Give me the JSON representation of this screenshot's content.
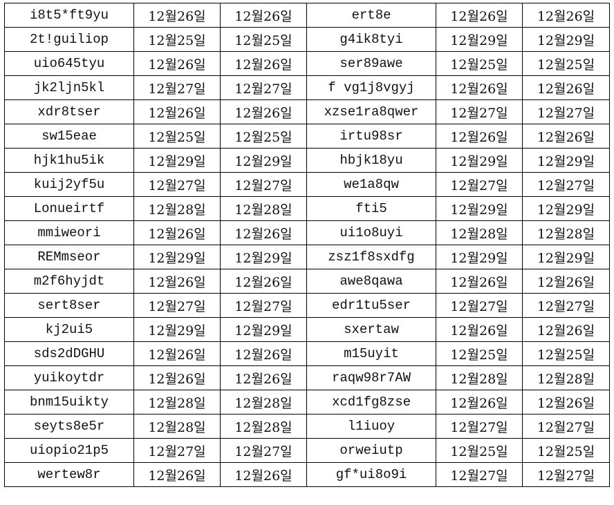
{
  "rows": [
    {
      "a": "i8t5*ft9yu",
      "a1": "12월26일",
      "a2": "12월26일",
      "b": "ert8e",
      "b1": "12월26일",
      "b2": "12월26일"
    },
    {
      "a": "2t!guiliop",
      "a1": "12월25일",
      "a2": "12월25일",
      "b": "g4ik8tyi",
      "b1": "12월29일",
      "b2": "12월29일"
    },
    {
      "a": "uio645tyu",
      "a1": "12월26일",
      "a2": "12월26일",
      "b": "ser89awe",
      "b1": "12월25일",
      "b2": "12월25일"
    },
    {
      "a": "jk2ljn5kl",
      "a1": "12월27일",
      "a2": "12월27일",
      "b": "f vg1j8vgyj",
      "b1": "12월26일",
      "b2": "12월26일"
    },
    {
      "a": "xdr8tser",
      "a1": "12월26일",
      "a2": "12월26일",
      "b": "xzse1ra8qwer",
      "b1": "12월27일",
      "b2": "12월27일"
    },
    {
      "a": "sw15eae",
      "a1": "12월25일",
      "a2": "12월25일",
      "b": "irtu98sr",
      "b1": "12월26일",
      "b2": "12월26일"
    },
    {
      "a": "hjk1hu5ik",
      "a1": "12월29일",
      "a2": "12월29일",
      "b": "hbjk18yu",
      "b1": "12월29일",
      "b2": "12월29일"
    },
    {
      "a": "kuij2yf5u",
      "a1": "12월27일",
      "a2": "12월27일",
      "b": "we1a8qw",
      "b1": "12월27일",
      "b2": "12월27일"
    },
    {
      "a": "Lonueirtf",
      "a1": "12월28일",
      "a2": "12월28일",
      "b": "fti5",
      "b1": "12월29일",
      "b2": "12월29일"
    },
    {
      "a": "mmiweori",
      "a1": "12월26일",
      "a2": "12월26일",
      "b": "ui1o8uyi",
      "b1": "12월28일",
      "b2": "12월28일"
    },
    {
      "a": "REMmseor",
      "a1": "12월29일",
      "a2": "12월29일",
      "b": "zsz1f8sxdfg",
      "b1": "12월29일",
      "b2": "12월29일"
    },
    {
      "a": "m2f6hyjdt",
      "a1": "12월26일",
      "a2": "12월26일",
      "b": "awe8qawa",
      "b1": "12월26일",
      "b2": "12월26일"
    },
    {
      "a": "sert8ser",
      "a1": "12월27일",
      "a2": "12월27일",
      "b": "edr1tu5ser",
      "b1": "12월27일",
      "b2": "12월27일"
    },
    {
      "a": "kj2ui5",
      "a1": "12월29일",
      "a2": "12월29일",
      "b": "sxertaw",
      "b1": "12월26일",
      "b2": "12월26일"
    },
    {
      "a": "sds2dDGHU",
      "a1": "12월26일",
      "a2": "12월26일",
      "b": "m15uyit",
      "b1": "12월25일",
      "b2": "12월25일"
    },
    {
      "a": "yuikoytdr",
      "a1": "12월26일",
      "a2": "12월26일",
      "b": "raqw98r7AW",
      "b1": "12월28일",
      "b2": "12월28일"
    },
    {
      "a": "bnm15uikty",
      "a1": "12월28일",
      "a2": "12월28일",
      "b": "xcd1fg8zse",
      "b1": "12월26일",
      "b2": "12월26일"
    },
    {
      "a": "seyts8e5r",
      "a1": "12월28일",
      "a2": "12월28일",
      "b": "l1iuoy",
      "b1": "12월27일",
      "b2": "12월27일"
    },
    {
      "a": "uiopio21p5",
      "a1": "12월27일",
      "a2": "12월27일",
      "b": "orweiutp",
      "b1": "12월25일",
      "b2": "12월25일"
    },
    {
      "a": "wertew8r",
      "a1": "12월26일",
      "a2": "12월26일",
      "b": "gf*ui8o9i",
      "b1": "12월27일",
      "b2": "12월27일"
    }
  ]
}
